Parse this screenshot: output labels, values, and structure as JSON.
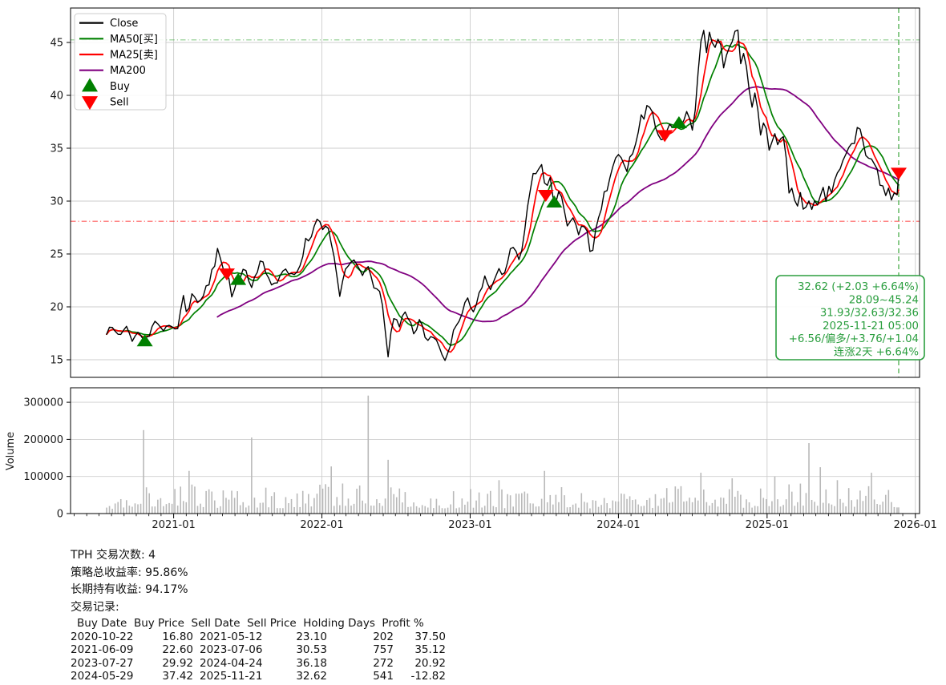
{
  "colors": {
    "close": "#000000",
    "ma50": "#008000",
    "ma25": "#ff0000",
    "ma200": "#800080",
    "buy_marker": "#008000",
    "sell_marker": "#ff0000",
    "range_high_line": "#2ca02c",
    "range_low_line": "#ff1a1a",
    "current_date_line": "#2ca02c",
    "annotation": "#2b9e3f",
    "grid": "#cdcdcd",
    "volume_bar": "#b9b9b9",
    "axis": "#000000",
    "tick_label": "#1a1a1a"
  },
  "legend": {
    "items": [
      {
        "label": "Close",
        "type": "line",
        "color": "#000000"
      },
      {
        "label": "MA50[买]",
        "type": "line",
        "color": "#008000"
      },
      {
        "label": "MA25[卖]",
        "type": "line",
        "color": "#ff0000"
      },
      {
        "label": "MA200",
        "type": "line",
        "color": "#800080"
      },
      {
        "label": "Buy",
        "type": "triangle-up",
        "color": "#008000"
      },
      {
        "label": "Sell",
        "type": "triangle-down",
        "color": "#ff0000"
      }
    ]
  },
  "price_axis": {
    "yticks": [
      15,
      20,
      25,
      30,
      35,
      40,
      45
    ]
  },
  "time_axis": {
    "labels": [
      "2021-01",
      "2022-01",
      "2023-01",
      "2024-01",
      "2025-01",
      "2026-01"
    ]
  },
  "volume_axis": {
    "yticks": [
      "0",
      "100000",
      "200000",
      "300000"
    ],
    "values": [
      0,
      100000,
      200000,
      300000
    ],
    "label": "Volume"
  },
  "reference": {
    "range_low": 28.09,
    "range_high": 45.24,
    "current_date": "2025-11-21"
  },
  "annotation": {
    "lines": [
      "32.62 (+2.03 +6.64%)",
      "28.09~45.24",
      "31.93/32.63/32.36",
      "2025-11-21 05:00",
      "+6.56/偏多/+3.76/+1.04",
      "连涨2天 +6.64%"
    ]
  },
  "chart_data": [
    {
      "type": "line",
      "panel": "price",
      "title": "",
      "xlabel": "",
      "ylabel": "",
      "ylim": [
        13.3,
        48.3
      ],
      "yticks": [
        15,
        20,
        25,
        30,
        35,
        40,
        45
      ],
      "x_range": [
        "2020-07-20",
        "2025-11-21"
      ],
      "grid": true,
      "legend_position": "upper-left",
      "series": [
        {
          "name": "Close",
          "color": "#000000",
          "anchors": [
            [
              "2020-07-20",
              17.6
            ],
            [
              "2020-08-05",
              18.1
            ],
            [
              "2020-08-20",
              17.2
            ],
            [
              "2020-09-05",
              18.3
            ],
            [
              "2020-09-22",
              16.9
            ],
            [
              "2020-10-06",
              17.8
            ],
            [
              "2020-10-22",
              16.8
            ],
            [
              "2020-11-06",
              17.6
            ],
            [
              "2020-11-20",
              18.6
            ],
            [
              "2020-12-04",
              17.5
            ],
            [
              "2020-12-18",
              18.4
            ],
            [
              "2021-01-06",
              17.7
            ],
            [
              "2021-01-14",
              18.2
            ],
            [
              "2021-01-22",
              21.2
            ],
            [
              "2021-02-03",
              19.4
            ],
            [
              "2021-02-16",
              21.6
            ],
            [
              "2021-03-02",
              20.3
            ],
            [
              "2021-03-18",
              21.2
            ],
            [
              "2021-04-06",
              23.3
            ],
            [
              "2021-04-20",
              25.5
            ],
            [
              "2021-04-28",
              24.0
            ],
            [
              "2021-05-12",
              23.1
            ],
            [
              "2021-05-24",
              21.3
            ],
            [
              "2021-06-09",
              22.6
            ],
            [
              "2021-06-24",
              23.6
            ],
            [
              "2021-07-12",
              21.9
            ],
            [
              "2021-08-03",
              24.5
            ],
            [
              "2021-08-20",
              22.7
            ],
            [
              "2021-09-10",
              22.1
            ],
            [
              "2021-10-01",
              24.0
            ],
            [
              "2021-10-20",
              22.7
            ],
            [
              "2021-11-10",
              24.3
            ],
            [
              "2021-11-24",
              26.4
            ],
            [
              "2021-12-10",
              27.2
            ],
            [
              "2021-12-21",
              28.2
            ],
            [
              "2022-01-04",
              27.0
            ],
            [
              "2022-01-12",
              28.2
            ],
            [
              "2022-01-25",
              26.2
            ],
            [
              "2022-02-14",
              21.0
            ],
            [
              "2022-03-03",
              24.1
            ],
            [
              "2022-03-22",
              24.6
            ],
            [
              "2022-04-13",
              23.0
            ],
            [
              "2022-04-26",
              23.8
            ],
            [
              "2022-05-12",
              21.2
            ],
            [
              "2022-05-26",
              21.8
            ],
            [
              "2022-06-13",
              15.5
            ],
            [
              "2022-06-24",
              18.9
            ],
            [
              "2022-07-12",
              18.4
            ],
            [
              "2022-07-26",
              19.5
            ],
            [
              "2022-08-15",
              17.5
            ],
            [
              "2022-08-30",
              18.9
            ],
            [
              "2022-09-17",
              16.4
            ],
            [
              "2022-10-07",
              17.6
            ],
            [
              "2022-10-20",
              15.6
            ],
            [
              "2022-11-01",
              15.0
            ],
            [
              "2022-11-18",
              17.2
            ],
            [
              "2022-12-12",
              19.4
            ],
            [
              "2022-12-22",
              20.9
            ],
            [
              "2023-01-06",
              19.6
            ],
            [
              "2023-01-20",
              20.9
            ],
            [
              "2023-02-07",
              22.7
            ],
            [
              "2023-02-20",
              22.0
            ],
            [
              "2023-03-10",
              23.5
            ],
            [
              "2023-03-24",
              22.8
            ],
            [
              "2023-04-12",
              26.0
            ],
            [
              "2023-04-25",
              24.8
            ],
            [
              "2023-05-05",
              24.5
            ],
            [
              "2023-05-25",
              30.6
            ],
            [
              "2023-06-08",
              32.7
            ],
            [
              "2023-06-28",
              33.4
            ],
            [
              "2023-07-06",
              30.5
            ],
            [
              "2023-07-17",
              32.1
            ],
            [
              "2023-07-27",
              29.9
            ],
            [
              "2023-08-10",
              31.0
            ],
            [
              "2023-08-28",
              27.3
            ],
            [
              "2023-09-12",
              28.3
            ],
            [
              "2023-09-26",
              26.8
            ],
            [
              "2023-10-10",
              28.0
            ],
            [
              "2023-10-27",
              24.8
            ],
            [
              "2023-11-08",
              27.6
            ],
            [
              "2023-11-22",
              30.0
            ],
            [
              "2023-12-08",
              31.6
            ],
            [
              "2023-12-26",
              34.0
            ],
            [
              "2024-01-10",
              34.3
            ],
            [
              "2024-01-24",
              33.0
            ],
            [
              "2024-02-07",
              35.0
            ],
            [
              "2024-02-15",
              36.3
            ],
            [
              "2024-02-27",
              37.8
            ],
            [
              "2024-03-12",
              38.6
            ],
            [
              "2024-03-26",
              38.3
            ],
            [
              "2024-04-10",
              36.3
            ],
            [
              "2024-04-24",
              36.2
            ],
            [
              "2024-05-08",
              37.4
            ],
            [
              "2024-05-29",
              37.4
            ],
            [
              "2024-06-12",
              37.6
            ],
            [
              "2024-06-21",
              38.4
            ],
            [
              "2024-07-02",
              36.5
            ],
            [
              "2024-07-16",
              42.2
            ],
            [
              "2024-07-24",
              46.7
            ],
            [
              "2024-08-06",
              43.9
            ],
            [
              "2024-08-14",
              46.0
            ],
            [
              "2024-08-28",
              44.5
            ],
            [
              "2024-09-06",
              46.0
            ],
            [
              "2024-09-18",
              42.2
            ],
            [
              "2024-09-27",
              44.8
            ],
            [
              "2024-10-08",
              45.2
            ],
            [
              "2024-10-18",
              46.8
            ],
            [
              "2024-10-29",
              42.8
            ],
            [
              "2024-11-06",
              44.6
            ],
            [
              "2024-11-15",
              41.2
            ],
            [
              "2024-11-26",
              39.0
            ],
            [
              "2024-12-05",
              40.7
            ],
            [
              "2024-12-16",
              36.7
            ],
            [
              "2024-12-27",
              37.1
            ],
            [
              "2025-01-08",
              34.9
            ],
            [
              "2025-01-17",
              36.6
            ],
            [
              "2025-01-28",
              35.6
            ],
            [
              "2025-02-06",
              36.8
            ],
            [
              "2025-02-15",
              35.5
            ],
            [
              "2025-02-24",
              30.8
            ],
            [
              "2025-03-03",
              31.6
            ],
            [
              "2025-03-10",
              30.1
            ],
            [
              "2025-03-19",
              29.9
            ],
            [
              "2025-03-25",
              30.8
            ],
            [
              "2025-04-01",
              29.5
            ],
            [
              "2025-04-08",
              29.0
            ],
            [
              "2025-04-16",
              30.2
            ],
            [
              "2025-04-22",
              29.3
            ],
            [
              "2025-05-01",
              30.5
            ],
            [
              "2025-05-07",
              29.8
            ],
            [
              "2025-05-16",
              31.5
            ],
            [
              "2025-05-25",
              30.2
            ],
            [
              "2025-06-05",
              31.8
            ],
            [
              "2025-06-11",
              30.8
            ],
            [
              "2025-06-18",
              32.7
            ],
            [
              "2025-07-01",
              33.6
            ],
            [
              "2025-07-14",
              34.1
            ],
            [
              "2025-07-27",
              35.2
            ],
            [
              "2025-08-09",
              36.3
            ],
            [
              "2025-08-13",
              37.3
            ],
            [
              "2025-08-27",
              35.8
            ],
            [
              "2025-09-03",
              33.8
            ],
            [
              "2025-09-12",
              34.8
            ],
            [
              "2025-09-18",
              32.9
            ],
            [
              "2025-09-27",
              33.6
            ],
            [
              "2025-10-05",
              31.6
            ],
            [
              "2025-10-11",
              32.4
            ],
            [
              "2025-10-17",
              30.5
            ],
            [
              "2025-10-24",
              31.5
            ],
            [
              "2025-11-01",
              30.2
            ],
            [
              "2025-11-10",
              30.8
            ],
            [
              "2025-11-17",
              30.2
            ],
            [
              "2025-11-20",
              30.59
            ],
            [
              "2025-11-21",
              32.62
            ]
          ]
        },
        {
          "name": "MA50[买]",
          "color": "#008000",
          "derived": "rolling_mean_of_close",
          "window_weeks": 10,
          "full_window_only": false
        },
        {
          "name": "MA25[卖]",
          "color": "#ff0000",
          "derived": "rolling_mean_of_close",
          "window_weeks": 5,
          "full_window_only": false
        },
        {
          "name": "MA200",
          "color": "#800080",
          "derived": "rolling_mean_of_close",
          "window_weeks": 40,
          "full_window_only": true
        }
      ],
      "reference_lines": {
        "horizontal": [
          {
            "value": 45.24,
            "style": "dashdot",
            "color": "#2ca02c"
          },
          {
            "value": 28.09,
            "style": "dashdot",
            "color": "#ff1a1a"
          }
        ],
        "vertical": [
          {
            "date": "2025-11-21",
            "style": "dashed",
            "color": "#2ca02c"
          }
        ]
      },
      "markers": {
        "buys": [
          {
            "date": "2020-10-22",
            "price": 16.8
          },
          {
            "date": "2021-06-09",
            "price": 22.6
          },
          {
            "date": "2023-07-27",
            "price": 29.92
          },
          {
            "date": "2024-05-29",
            "price": 37.42
          }
        ],
        "sells": [
          {
            "date": "2021-05-12",
            "price": 23.1
          },
          {
            "date": "2023-07-06",
            "price": 30.53
          },
          {
            "date": "2024-04-24",
            "price": 36.18
          },
          {
            "date": "2025-11-21",
            "price": 32.62
          }
        ]
      },
      "last_close": 32.62,
      "prev_close": 30.59,
      "render_noise": {
        "seed": 123456789,
        "amp": 0.45
      }
    },
    {
      "type": "bar",
      "panel": "volume",
      "ylabel": "Volume",
      "yticks": [
        0,
        100000,
        200000,
        300000
      ],
      "grid": true,
      "base_envelope": [
        [
          "2020-07-20",
          55000
        ],
        [
          "2020-10-20",
          80000
        ],
        [
          "2021-01-15",
          95000
        ],
        [
          "2021-04-15",
          70000
        ],
        [
          "2021-07-09",
          75000
        ],
        [
          "2021-10-01",
          65000
        ],
        [
          "2022-01-20",
          90000
        ],
        [
          "2022-04-22",
          100000
        ],
        [
          "2022-07-15",
          80000
        ],
        [
          "2022-10-15",
          60000
        ],
        [
          "2023-01-15",
          70000
        ],
        [
          "2023-04-15",
          65000
        ],
        [
          "2023-06-30",
          90000
        ],
        [
          "2023-10-01",
          60000
        ],
        [
          "2024-01-15",
          60000
        ],
        [
          "2024-07-24",
          85000
        ],
        [
          "2024-10-15",
          70000
        ],
        [
          "2025-01-15",
          75000
        ],
        [
          "2025-04-10",
          95000
        ],
        [
          "2025-08-15",
          80000
        ],
        [
          "2025-11-21",
          65000
        ]
      ],
      "spikes": [
        [
          "2020-10-20",
          225000
        ],
        [
          "2021-02-05",
          115000
        ],
        [
          "2021-07-09",
          205000
        ],
        [
          "2022-01-21",
          127000
        ],
        [
          "2022-04-22",
          318000
        ],
        [
          "2022-06-13",
          145000
        ],
        [
          "2023-03-10",
          90000
        ],
        [
          "2023-06-30",
          115000
        ],
        [
          "2024-07-24",
          110000
        ],
        [
          "2024-10-04",
          95000
        ],
        [
          "2025-01-17",
          100000
        ],
        [
          "2025-04-11",
          190000
        ],
        [
          "2025-05-09",
          125000
        ],
        [
          "2025-06-20",
          90000
        ],
        [
          "2025-09-12",
          110000
        ]
      ]
    }
  ],
  "stats": {
    "trade_count_label": "TPH 交易次数: 4",
    "strategy_return_label": "策略总收益率: 95.86%",
    "hold_return_label": "长期持有收益: 94.17%",
    "records_label": "交易记录:",
    "table": {
      "headers": [
        "Buy Date",
        "Buy Price",
        "Sell Date",
        "Sell Price",
        "Holding Days",
        "Profit %"
      ],
      "rows": [
        [
          "2020-10-22",
          "16.80",
          "2021-05-12",
          "23.10",
          "202",
          "37.50"
        ],
        [
          "2021-06-09",
          "22.60",
          "2023-07-06",
          "30.53",
          "757",
          "35.12"
        ],
        [
          "2023-07-27",
          "29.92",
          "2024-04-24",
          "36.18",
          "272",
          "20.92"
        ],
        [
          "2024-05-29",
          "37.42",
          "2025-11-21",
          "32.62",
          "541",
          "-12.82"
        ]
      ]
    }
  }
}
